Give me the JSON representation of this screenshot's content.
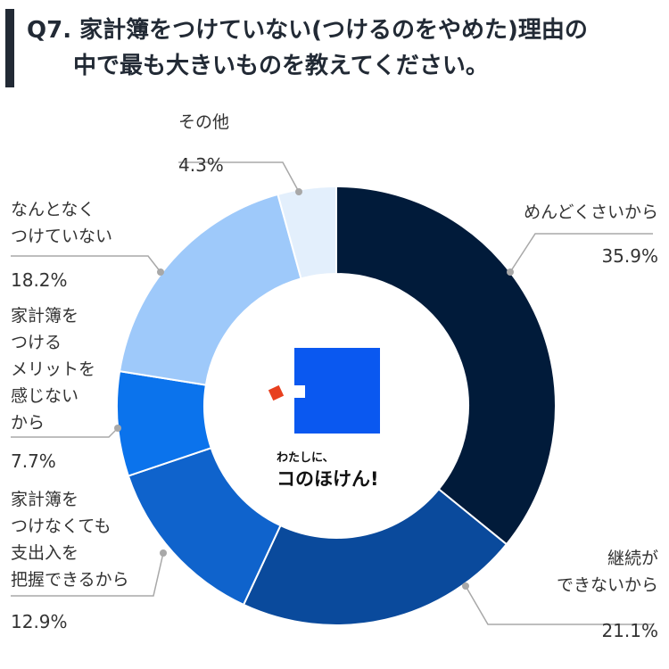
{
  "title": {
    "line1": "Q7. 家計簿をつけていない(つけるのをやめた)理由の",
    "line2": "中で最も大きいものを教えてください。"
  },
  "logo": {
    "sub": "わたしに、",
    "main": "コのほけん!"
  },
  "colors": {
    "title_bar": "#222a35",
    "slices": [
      "#011b3a",
      "#0a4a9c",
      "#0f63cc",
      "#0b73ec",
      "#9ec9fa",
      "#e3effc"
    ],
    "logo_square": "#0a58f0",
    "logo_accent": "#e8401f"
  },
  "chart_data": {
    "type": "pie",
    "donut": true,
    "categories": [
      "めんどくさいから",
      "継続ができないから",
      "家計簿をつけなくても支出入を把握できるから",
      "家計簿をつけるメリットを感じないから",
      "なんとなくつけていない",
      "その他"
    ],
    "label_lines": [
      [
        "めんどくさいから"
      ],
      [
        "継続が",
        "できないから"
      ],
      [
        "家計簿を",
        "つけなくても",
        "支出入を",
        "把握できるから"
      ],
      [
        "家計簿を",
        "つける",
        "メリットを",
        "感じない",
        "から"
      ],
      [
        "なんとなく",
        "つけていない"
      ],
      [
        "その他"
      ]
    ],
    "values": [
      35.9,
      21.1,
      12.9,
      7.7,
      18.2,
      4.3
    ],
    "value_labels": [
      "35.9%",
      "21.1%",
      "12.9%",
      "7.7%",
      "18.2%",
      "4.3%"
    ]
  }
}
